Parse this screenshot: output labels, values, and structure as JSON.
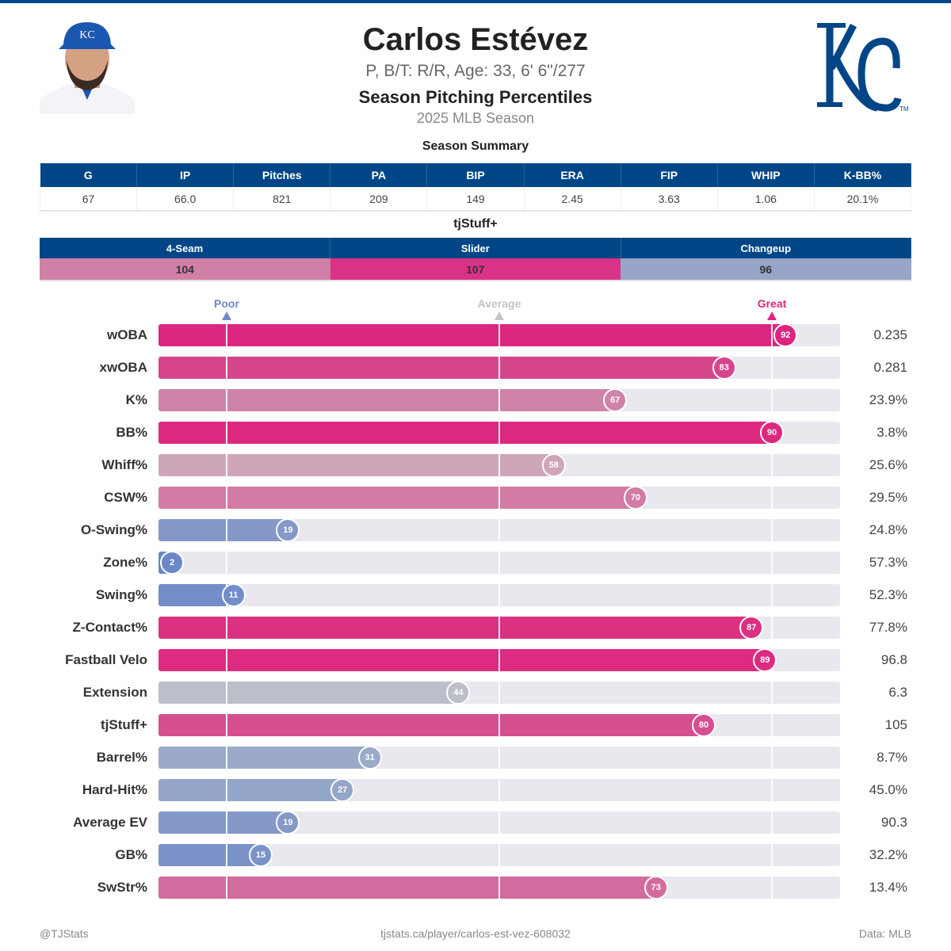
{
  "header": {
    "name": "Carlos Estévez",
    "bio": "P, B/T: R/R, Age: 33, 6' 6\"/277",
    "subtitle": "Season Pitching Percentiles",
    "season": "2025 MLB Season",
    "team_logo": "KC",
    "logo_color": "#004687"
  },
  "summary": {
    "title": "Season Summary",
    "columns": [
      "G",
      "IP",
      "Pitches",
      "PA",
      "BIP",
      "ERA",
      "FIP",
      "WHIP",
      "K-BB%"
    ],
    "values": [
      "67",
      "66.0",
      "821",
      "209",
      "149",
      "2.45",
      "3.63",
      "1.06",
      "20.1%"
    ]
  },
  "tjstuff": {
    "title": "tjStuff+",
    "pitches": [
      {
        "name": "4-Seam",
        "value": "104",
        "color": "#d080a6"
      },
      {
        "name": "Slider",
        "value": "107",
        "color": "#da3287"
      },
      {
        "name": "Changeup",
        "value": "96",
        "color": "#97a6c8"
      }
    ]
  },
  "legend": {
    "poor": "Poor",
    "average": "Average",
    "great": "Great",
    "poor_color": "#6f8ac6",
    "average_color": "#c4c4c4",
    "great_color": "#dc267f"
  },
  "chart_data": {
    "type": "bar",
    "orientation": "horizontal",
    "xlim": [
      0,
      100
    ],
    "reference_lines": [
      10,
      50,
      90
    ],
    "rows": [
      {
        "label": "wOBA",
        "percentile": 92,
        "value": "0.235",
        "color": "#dd267f"
      },
      {
        "label": "xwOBA",
        "percentile": 83,
        "value": "0.281",
        "color": "#d6458b"
      },
      {
        "label": "K%",
        "percentile": 67,
        "value": "23.9%",
        "color": "#d083a8"
      },
      {
        "label": "BB%",
        "percentile": 90,
        "value": "3.8%",
        "color": "#dd287f"
      },
      {
        "label": "Whiff%",
        "percentile": 58,
        "value": "25.6%",
        "color": "#cfa6b9"
      },
      {
        "label": "CSW%",
        "percentile": 70,
        "value": "29.5%",
        "color": "#d27ba4"
      },
      {
        "label": "O-Swing%",
        "percentile": 19,
        "value": "24.8%",
        "color": "#8499c8"
      },
      {
        "label": "Zone%",
        "percentile": 2,
        "value": "57.3%",
        "color": "#6b88c6"
      },
      {
        "label": "Swing%",
        "percentile": 11,
        "value": "52.3%",
        "color": "#728dc8"
      },
      {
        "label": "Z-Contact%",
        "percentile": 87,
        "value": "77.8%",
        "color": "#db3182"
      },
      {
        "label": "Fastball Velo",
        "percentile": 89,
        "value": "96.8",
        "color": "#dc2b80"
      },
      {
        "label": "Extension",
        "percentile": 44,
        "value": "6.3",
        "color": "#bcbfc9"
      },
      {
        "label": "tjStuff+",
        "percentile": 80,
        "value": "105",
        "color": "#d54f8f"
      },
      {
        "label": "Barrel%",
        "percentile": 31,
        "value": "8.7%",
        "color": "#9aaac8"
      },
      {
        "label": "Hard-Hit%",
        "percentile": 27,
        "value": "45.0%",
        "color": "#94a6c9"
      },
      {
        "label": "Average EV",
        "percentile": 19,
        "value": "90.3",
        "color": "#8499c8"
      },
      {
        "label": "GB%",
        "percentile": 15,
        "value": "32.2%",
        "color": "#7a92c7"
      },
      {
        "label": "SwStr%",
        "percentile": 73,
        "value": "13.4%",
        "color": "#d36c9e"
      }
    ]
  },
  "footer": {
    "left": "@TJStats",
    "center": "tjstats.ca/player/carlos-est-vez-608032",
    "right": "Data: MLB"
  }
}
